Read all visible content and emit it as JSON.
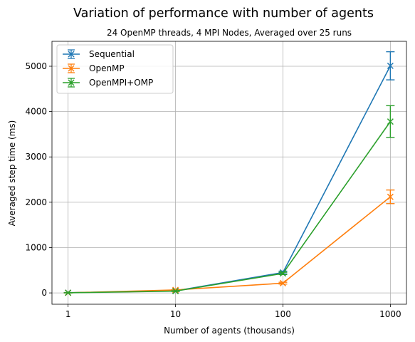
{
  "chart_data": {
    "type": "line",
    "title": "Variation of performance with number of agents",
    "subtitle": "24 OpenMP threads, 4 MPI Nodes, Averaged over 25 runs",
    "xlabel": "Number of agents (thousands)",
    "ylabel": "Averaged step time (ms)",
    "x_scale": "log",
    "x": [
      1,
      10,
      100,
      1000
    ],
    "x_tick_labels": [
      "1",
      "10",
      "100",
      "1000"
    ],
    "ylim": [
      -250,
      5550
    ],
    "y_ticks": [
      0,
      1000,
      2000,
      3000,
      4000,
      5000
    ],
    "y_tick_labels": [
      "0",
      "1000",
      "2000",
      "3000",
      "4000",
      "5000"
    ],
    "grid": true,
    "legend_position": "top-left",
    "series": [
      {
        "name": "Sequential",
        "color": "#1f77b4",
        "marker": "x",
        "values": [
          5,
          45,
          450,
          5010
        ],
        "errors": [
          3,
          10,
          30,
          310
        ]
      },
      {
        "name": "OpenMP",
        "color": "#ff7f0e",
        "marker": "x",
        "values": [
          2,
          65,
          215,
          2120
        ],
        "errors": [
          1,
          8,
          20,
          150
        ]
      },
      {
        "name": "OpenMPI+OMP",
        "color": "#2ca02c",
        "marker": "x",
        "values": [
          3,
          40,
          430,
          3780
        ],
        "errors": [
          1,
          8,
          25,
          350
        ]
      }
    ]
  }
}
